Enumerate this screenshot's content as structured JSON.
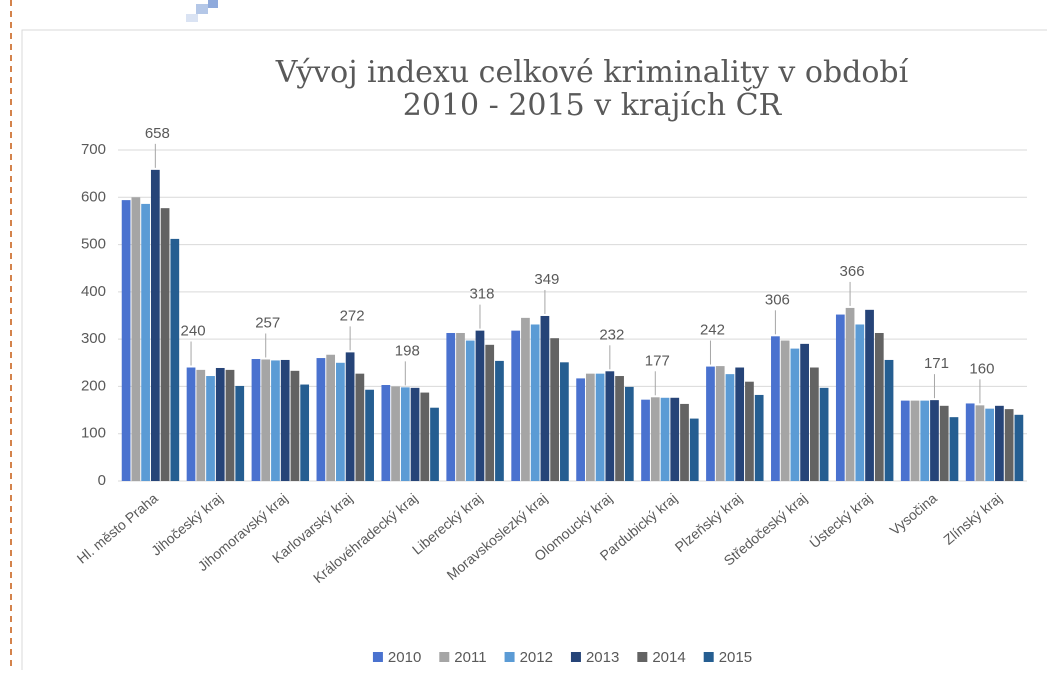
{
  "chart_data": {
    "type": "bar",
    "title": "Vývoj indexu celkové kriminality v období 2010 - 2015 v krajích ČR",
    "categories": [
      "Hl. město Praha",
      "Jihočeský kraj",
      "Jihomoravský kraj",
      "Karlovarský kraj",
      "Královéhradecký kraj",
      "Liberecký kraj",
      "Moravskoslezký kraj",
      "Olomoucký kraj",
      "Pardubický kraj",
      "Plzeňský kraj",
      "Středočeský kraj",
      "Ústecký kraj",
      "Vysočina",
      "Zlínský kraj"
    ],
    "series": [
      {
        "name": "2010",
        "color": "#4a72cf",
        "values": [
          594,
          240,
          258,
          260,
          203,
          313,
          318,
          217,
          172,
          242,
          306,
          352,
          170,
          164
        ],
        "value_labels": [
          null,
          "240",
          null,
          null,
          null,
          null,
          null,
          null,
          null,
          "242",
          "306",
          null,
          null,
          null
        ]
      },
      {
        "name": "2011",
        "color": "#a5a5a5",
        "values": [
          600,
          235,
          257,
          267,
          200,
          313,
          345,
          227,
          177,
          243,
          297,
          366,
          170,
          160
        ],
        "value_labels": [
          null,
          null,
          "257",
          null,
          null,
          null,
          null,
          null,
          "177",
          null,
          null,
          "366",
          null,
          "160"
        ]
      },
      {
        "name": "2012",
        "color": "#5b9bd5",
        "values": [
          586,
          222,
          255,
          250,
          198,
          297,
          331,
          227,
          176,
          226,
          280,
          331,
          170,
          153
        ],
        "value_labels": [
          null,
          null,
          null,
          null,
          "198",
          null,
          null,
          null,
          null,
          null,
          null,
          null,
          null,
          null
        ]
      },
      {
        "name": "2013",
        "color": "#264478",
        "values": [
          658,
          239,
          256,
          272,
          197,
          318,
          349,
          232,
          176,
          240,
          290,
          362,
          171,
          159
        ],
        "value_labels": [
          "658",
          null,
          null,
          "272",
          null,
          "318",
          "349",
          "232",
          null,
          null,
          null,
          null,
          "171",
          null
        ]
      },
      {
        "name": "2014",
        "color": "#636363",
        "values": [
          577,
          235,
          233,
          227,
          187,
          288,
          302,
          222,
          163,
          210,
          240,
          313,
          159,
          152
        ]
      },
      {
        "name": "2015",
        "color": "#255e91",
        "values": [
          512,
          201,
          204,
          193,
          155,
          254,
          251,
          199,
          132,
          182,
          197,
          256,
          135,
          140
        ]
      }
    ],
    "ylim": [
      0,
      700
    ],
    "yticks": [
      0,
      100,
      200,
      300,
      400,
      500,
      600,
      700
    ],
    "grid": true,
    "legend": "bottom"
  }
}
